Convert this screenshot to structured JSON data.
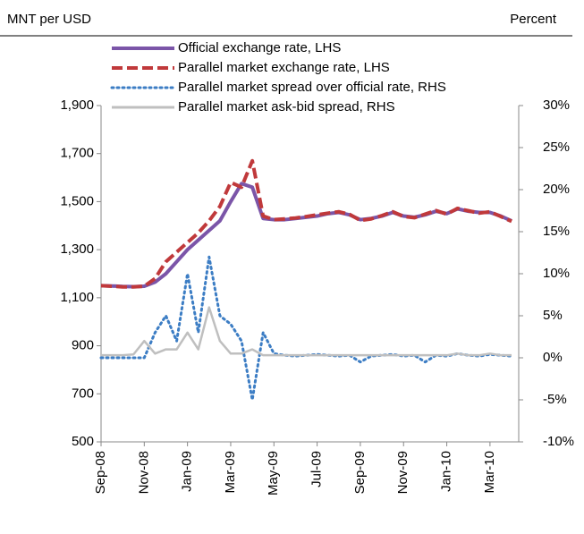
{
  "chart_data": {
    "type": "line",
    "y_label": "MNT per USD",
    "y2_label": "Percent",
    "categories": [
      "Sep-08",
      null,
      null,
      null,
      "Nov-08",
      null,
      null,
      null,
      "Jan-09",
      null,
      null,
      null,
      "Mar-09",
      null,
      null,
      null,
      "May-09",
      null,
      null,
      null,
      "Jul-09",
      null,
      null,
      null,
      "Sep-09",
      null,
      null,
      null,
      "Nov-09",
      null,
      null,
      null,
      "Jan-10",
      null,
      null,
      null,
      "Mar-10",
      null,
      null
    ],
    "series": [
      {
        "name": "Official exchange rate, LHS",
        "color": "#7b55a8",
        "style": "solid",
        "values": [
          1150,
          1149,
          1147,
          1146,
          1148,
          1165,
          1200,
          1250,
          1300,
          1340,
          1380,
          1420,
          1500,
          1575,
          1560,
          1430,
          1425,
          1425,
          1430,
          1435,
          1440,
          1450,
          1455,
          1445,
          1425,
          1430,
          1440,
          1455,
          1440,
          1435,
          1445,
          1460,
          1450,
          1470,
          1460,
          1455,
          1455,
          1440,
          1420
        ]
      },
      {
        "name": "Parallel market exchange rate, LHS",
        "color": "#c0393b",
        "style": "dashed",
        "values": [
          1150,
          1148,
          1145,
          1145,
          1148,
          1180,
          1250,
          1290,
          1330,
          1370,
          1420,
          1480,
          1580,
          1560,
          1670,
          1440,
          1425,
          1428,
          1432,
          1438,
          1445,
          1452,
          1458,
          1447,
          1422,
          1428,
          1442,
          1458,
          1438,
          1433,
          1448,
          1463,
          1448,
          1472,
          1462,
          1452,
          1458,
          1438,
          1418
        ]
      },
      {
        "name": "Parallel market spread over official rate, RHS",
        "color": "#3c7dc4",
        "style": "dotted",
        "axis": "y2",
        "values": [
          0,
          0,
          0,
          0,
          0,
          3,
          5,
          2,
          10,
          3,
          12,
          5,
          4,
          2,
          -5,
          3,
          0.5,
          0.3,
          0.2,
          0.3,
          0.4,
          0.3,
          0.2,
          0.3,
          -0.5,
          0.2,
          0.3,
          0.4,
          0.2,
          0.3,
          -0.5,
          0.3,
          0.2,
          0.5,
          0.3,
          0.2,
          0.4,
          0.3,
          0.2
        ]
      },
      {
        "name": "Parallel market ask-bid spread, RHS",
        "color": "#bfbfbf",
        "style": "solid",
        "axis": "y2",
        "values": [
          0.3,
          0.3,
          0.3,
          0.4,
          2,
          0.5,
          1,
          1,
          3,
          1,
          6,
          2,
          0.5,
          0.5,
          1,
          0.3,
          0.3,
          0.3,
          0.3,
          0.3,
          0.3,
          0.3,
          0.3,
          0.3,
          0.3,
          0.3,
          0.3,
          0.3,
          0.3,
          0.3,
          0.3,
          0.3,
          0.3,
          0.5,
          0.3,
          0.3,
          0.5,
          0.3,
          0.3
        ]
      }
    ],
    "ylim": [
      500,
      1900
    ],
    "yticks": [
      500,
      700,
      900,
      {
        "value": 1100,
        "label": "1,100"
      },
      {
        "value": 1300,
        "label": "1,300"
      },
      {
        "value": 1500,
        "label": "1,500"
      },
      {
        "value": 1700,
        "label": "1,700"
      },
      {
        "value": 1900,
        "label": "1,900"
      }
    ],
    "y2lim": [
      -10,
      30
    ],
    "y2ticks": [
      {
        "value": -10,
        "label": "-10%"
      },
      {
        "value": -5,
        "label": "-5%"
      },
      {
        "value": 0,
        "label": "0%"
      },
      {
        "value": 5,
        "label": "5%"
      },
      {
        "value": 10,
        "label": "10%"
      },
      {
        "value": 15,
        "label": "15%"
      },
      {
        "value": 20,
        "label": "20%"
      },
      {
        "value": 25,
        "label": "25%"
      },
      {
        "value": 30,
        "label": "30%"
      }
    ]
  }
}
